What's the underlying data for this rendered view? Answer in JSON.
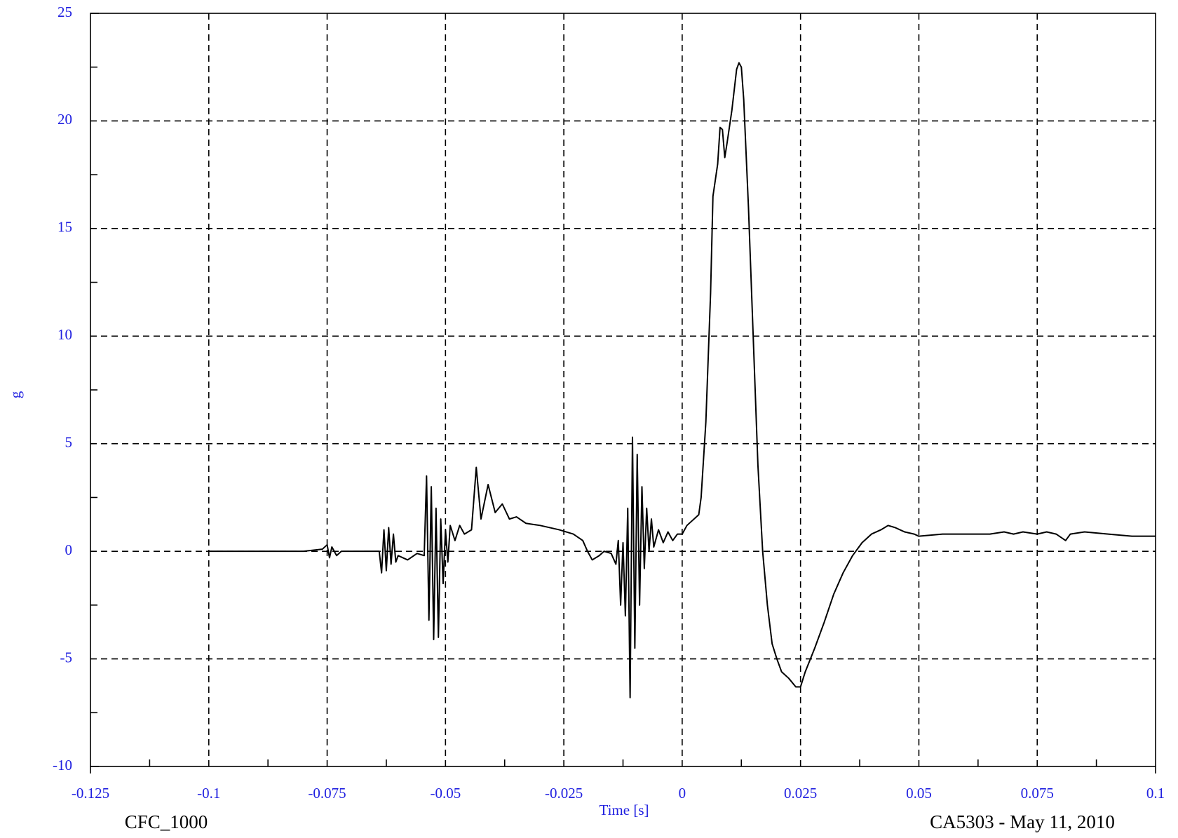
{
  "chart_data": {
    "type": "line",
    "xlabel": "Time [s]",
    "ylabel": "g",
    "annotations": [
      "CFC_1000",
      "CA5303 - May 11, 2010"
    ],
    "color": "#000000",
    "grid": true,
    "xlim": [
      -0.125,
      0.1
    ],
    "xticks": [
      -0.125,
      -0.1,
      -0.075,
      -0.05,
      -0.025,
      0,
      0.025,
      0.05,
      0.075,
      0.1
    ],
    "ylim": [
      -10,
      25
    ],
    "yticks": [
      -10,
      -5,
      0,
      5,
      10,
      15,
      20,
      25
    ],
    "x": [
      -0.1,
      -0.08,
      -0.076,
      -0.075,
      -0.0745,
      -0.074,
      -0.073,
      -0.072,
      -0.068,
      -0.064,
      -0.0635,
      -0.063,
      -0.0625,
      -0.062,
      -0.0615,
      -0.061,
      -0.0605,
      -0.06,
      -0.058,
      -0.056,
      -0.0545,
      -0.054,
      -0.0535,
      -0.053,
      -0.0525,
      -0.052,
      -0.0515,
      -0.051,
      -0.0505,
      -0.05,
      -0.0495,
      -0.049,
      -0.048,
      -0.047,
      -0.046,
      -0.0445,
      -0.0435,
      -0.0425,
      -0.041,
      -0.0395,
      -0.038,
      -0.0365,
      -0.035,
      -0.033,
      -0.03,
      -0.026,
      -0.023,
      -0.021,
      -0.02,
      -0.019,
      -0.0175,
      -0.0165,
      -0.015,
      -0.014,
      -0.0135,
      -0.013,
      -0.0125,
      -0.012,
      -0.0115,
      -0.011,
      -0.0105,
      -0.01,
      -0.0095,
      -0.009,
      -0.0085,
      -0.008,
      -0.0075,
      -0.007,
      -0.0065,
      -0.006,
      -0.005,
      -0.004,
      -0.003,
      -0.002,
      -0.001,
      0,
      0.001,
      0.002,
      0.0035,
      0.004,
      0.005,
      0.006,
      0.0065,
      0.0075,
      0.008,
      0.0085,
      0.009,
      0.0095,
      0.0105,
      0.0115,
      0.012,
      0.0125,
      0.013,
      0.014,
      0.015,
      0.016,
      0.017,
      0.018,
      0.019,
      0.02,
      0.021,
      0.0225,
      0.024,
      0.025,
      0.026,
      0.028,
      0.03,
      0.032,
      0.034,
      0.036,
      0.038,
      0.04,
      0.042,
      0.0435,
      0.045,
      0.047,
      0.049,
      0.05,
      0.055,
      0.06,
      0.065,
      0.068,
      0.07,
      0.072,
      0.075,
      0.077,
      0.079,
      0.081,
      0.082,
      0.085,
      0.09,
      0.095,
      0.1
    ],
    "values": [
      0,
      0,
      0.1,
      0.3,
      -0.3,
      0.2,
      -0.2,
      0,
      0,
      0,
      -1.0,
      1.0,
      -0.9,
      1.1,
      -0.6,
      0.8,
      -0.5,
      -0.2,
      -0.4,
      -0.1,
      -0.2,
      3.5,
      -3.2,
      3.0,
      -4.1,
      2.0,
      -4.0,
      1.5,
      -1.5,
      1.0,
      -0.5,
      1.2,
      0.5,
      1.2,
      0.8,
      1.0,
      3.9,
      1.5,
      3.1,
      1.8,
      2.2,
      1.5,
      1.6,
      1.3,
      1.2,
      1.0,
      0.8,
      0.5,
      0,
      -0.4,
      -0.2,
      0,
      -0.1,
      -0.6,
      0.5,
      -2.5,
      0.4,
      -3.0,
      2.0,
      -6.8,
      5.3,
      -4.5,
      4.5,
      -2.5,
      3.0,
      -0.8,
      2.0,
      0,
      1.5,
      0.2,
      1.0,
      0.4,
      0.9,
      0.5,
      0.8,
      0.8,
      1.2,
      1.4,
      1.7,
      2.5,
      6,
      12,
      16.5,
      18,
      19.7,
      19.6,
      18.3,
      19.0,
      20.5,
      22.4,
      22.7,
      22.5,
      21,
      16,
      10,
      4,
      0,
      -2.5,
      -4.3,
      -5.0,
      -5.6,
      -5.9,
      -6.3,
      -6.3,
      -5.6,
      -4.5,
      -3.3,
      -2.0,
      -1.0,
      -0.2,
      0.4,
      0.8,
      1.0,
      1.2,
      1.1,
      0.9,
      0.8,
      0.7,
      0.8,
      0.8,
      0.8,
      0.9,
      0.8,
      0.9,
      0.8,
      0.9,
      0.8,
      0.5,
      0.8,
      0.9,
      0.8,
      0.7,
      0.7
    ]
  }
}
